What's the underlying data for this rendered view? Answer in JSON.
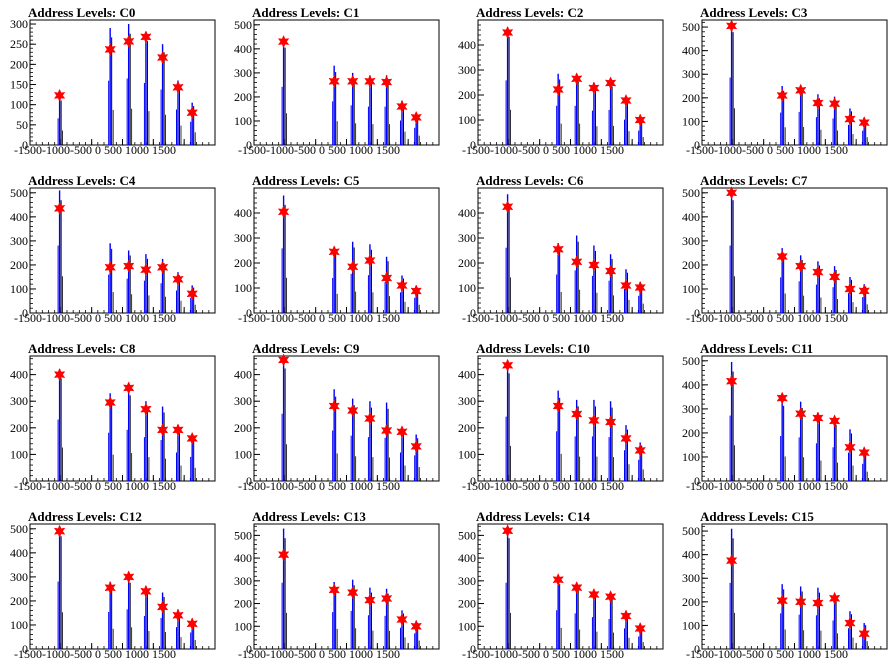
{
  "colors": {
    "histogram": "#0000ff",
    "outline": "#000000",
    "marker": "#ff0000",
    "background": "#ffffff"
  },
  "marker_icon": "red-star-marker",
  "x_ticks": [
    -1500,
    -1000,
    -500,
    0,
    500,
    1000,
    1500
  ],
  "x_tick_text": "-1500-1000-500  0  500 1000 1500",
  "chart_data": [
    {
      "type": "bar",
      "title": "Address Levels: C0",
      "xlim": [
        -1500,
        1500
      ],
      "ylim": [
        0,
        310
      ],
      "yticks": [
        0,
        50,
        100,
        150,
        200,
        250,
        300
      ],
      "peaks": [
        {
          "x": -1020,
          "count": 120
        },
        {
          "x": -200,
          "count": 290
        },
        {
          "x": 100,
          "count": 300
        },
        {
          "x": 380,
          "count": 280
        },
        {
          "x": 650,
          "count": 250
        },
        {
          "x": 900,
          "count": 160
        },
        {
          "x": 1130,
          "count": 105
        }
      ],
      "markers": [
        {
          "x": -1020,
          "y": 123
        },
        {
          "x": -200,
          "y": 237
        },
        {
          "x": 100,
          "y": 257
        },
        {
          "x": 380,
          "y": 268
        },
        {
          "x": 650,
          "y": 217
        },
        {
          "x": 900,
          "y": 143
        },
        {
          "x": 1130,
          "y": 80
        }
      ]
    },
    {
      "type": "bar",
      "title": "Address Levels: C1",
      "xlim": [
        -1500,
        1500
      ],
      "ylim": [
        0,
        520
      ],
      "yticks": [
        0,
        100,
        200,
        300,
        400,
        500
      ],
      "peaks": [
        {
          "x": -1020,
          "count": 440
        },
        {
          "x": -200,
          "count": 330
        },
        {
          "x": 100,
          "count": 300
        },
        {
          "x": 380,
          "count": 290
        },
        {
          "x": 650,
          "count": 290
        },
        {
          "x": 900,
          "count": 185
        },
        {
          "x": 1130,
          "count": 130
        }
      ],
      "markers": [
        {
          "x": -1020,
          "y": 430
        },
        {
          "x": -200,
          "y": 265
        },
        {
          "x": 100,
          "y": 265
        },
        {
          "x": 380,
          "y": 265
        },
        {
          "x": 650,
          "y": 262
        },
        {
          "x": 900,
          "y": 160
        },
        {
          "x": 1130,
          "y": 115
        }
      ]
    },
    {
      "type": "bar",
      "title": "Address Levels: C2",
      "xlim": [
        -1500,
        1500
      ],
      "ylim": [
        0,
        500
      ],
      "yticks": [
        0,
        100,
        200,
        300,
        400
      ],
      "peaks": [
        {
          "x": -1020,
          "count": 470
        },
        {
          "x": -200,
          "count": 285
        },
        {
          "x": 100,
          "count": 285
        },
        {
          "x": 380,
          "count": 250
        },
        {
          "x": 650,
          "count": 255
        },
        {
          "x": 900,
          "count": 185
        },
        {
          "x": 1130,
          "count": 105
        }
      ],
      "markers": [
        {
          "x": -1020,
          "y": 450
        },
        {
          "x": -200,
          "y": 222
        },
        {
          "x": 100,
          "y": 265
        },
        {
          "x": 380,
          "y": 228
        },
        {
          "x": 650,
          "y": 248
        },
        {
          "x": 900,
          "y": 178
        },
        {
          "x": 1130,
          "y": 100
        }
      ]
    },
    {
      "type": "bar",
      "title": "Address Levels: C3",
      "xlim": [
        -1500,
        1500
      ],
      "ylim": [
        0,
        530
      ],
      "yticks": [
        0,
        100,
        200,
        300,
        400,
        500
      ],
      "peaks": [
        {
          "x": -1020,
          "count": 520
        },
        {
          "x": -200,
          "count": 250
        },
        {
          "x": 100,
          "count": 255
        },
        {
          "x": 380,
          "count": 215
        },
        {
          "x": 650,
          "count": 205
        },
        {
          "x": 900,
          "count": 155
        },
        {
          "x": 1130,
          "count": 110
        }
      ],
      "markers": [
        {
          "x": -1020,
          "y": 505
        },
        {
          "x": -200,
          "y": 210
        },
        {
          "x": 100,
          "y": 232
        },
        {
          "x": 380,
          "y": 178
        },
        {
          "x": 650,
          "y": 175
        },
        {
          "x": 900,
          "y": 110
        },
        {
          "x": 1130,
          "y": 95
        }
      ]
    },
    {
      "type": "bar",
      "title": "Address Levels: C4",
      "xlim": [
        -1500,
        1500
      ],
      "ylim": [
        0,
        520
      ],
      "yticks": [
        0,
        100,
        200,
        300,
        400,
        500
      ],
      "peaks": [
        {
          "x": -1020,
          "count": 510
        },
        {
          "x": -200,
          "count": 290
        },
        {
          "x": 100,
          "count": 260
        },
        {
          "x": 380,
          "count": 245
        },
        {
          "x": 650,
          "count": 225
        },
        {
          "x": 900,
          "count": 170
        },
        {
          "x": 1130,
          "count": 115
        }
      ],
      "markers": [
        {
          "x": -1020,
          "y": 435
        },
        {
          "x": -200,
          "y": 190
        },
        {
          "x": 100,
          "y": 195
        },
        {
          "x": 380,
          "y": 180
        },
        {
          "x": 650,
          "y": 190
        },
        {
          "x": 900,
          "y": 140
        },
        {
          "x": 1130,
          "y": 80
        }
      ]
    },
    {
      "type": "bar",
      "title": "Address Levels: C5",
      "xlim": [
        -1500,
        1500
      ],
      "ylim": [
        0,
        500
      ],
      "yticks": [
        0,
        100,
        200,
        300,
        400
      ],
      "peaks": [
        {
          "x": -1020,
          "count": 470
        },
        {
          "x": -200,
          "count": 255
        },
        {
          "x": 100,
          "count": 285
        },
        {
          "x": 380,
          "count": 275
        },
        {
          "x": 650,
          "count": 225
        },
        {
          "x": 900,
          "count": 150
        },
        {
          "x": 1130,
          "count": 110
        }
      ],
      "markers": [
        {
          "x": -1020,
          "y": 405
        },
        {
          "x": -200,
          "y": 245
        },
        {
          "x": 100,
          "y": 185
        },
        {
          "x": 380,
          "y": 210
        },
        {
          "x": 650,
          "y": 140
        },
        {
          "x": 900,
          "y": 110
        },
        {
          "x": 1130,
          "y": 88
        }
      ]
    },
    {
      "type": "bar",
      "title": "Address Levels: C6",
      "xlim": [
        -1500,
        1500
      ],
      "ylim": [
        0,
        500
      ],
      "yticks": [
        0,
        100,
        200,
        300,
        400
      ],
      "peaks": [
        {
          "x": -1020,
          "count": 475
        },
        {
          "x": -200,
          "count": 280
        },
        {
          "x": 100,
          "count": 310
        },
        {
          "x": 380,
          "count": 270
        },
        {
          "x": 650,
          "count": 235
        },
        {
          "x": 900,
          "count": 175
        },
        {
          "x": 1130,
          "count": 125
        }
      ],
      "markers": [
        {
          "x": -1020,
          "y": 425
        },
        {
          "x": -200,
          "y": 255
        },
        {
          "x": 100,
          "y": 205
        },
        {
          "x": 380,
          "y": 192
        },
        {
          "x": 650,
          "y": 168
        },
        {
          "x": 900,
          "y": 110
        },
        {
          "x": 1130,
          "y": 102
        }
      ]
    },
    {
      "type": "bar",
      "title": "Address Levels: C7",
      "xlim": [
        -1500,
        1500
      ],
      "ylim": [
        0,
        520
      ],
      "yticks": [
        0,
        100,
        200,
        300,
        400,
        500
      ],
      "peaks": [
        {
          "x": -1020,
          "count": 510
        },
        {
          "x": -200,
          "count": 270
        },
        {
          "x": 100,
          "count": 240
        },
        {
          "x": 380,
          "count": 215
        },
        {
          "x": 650,
          "count": 195
        },
        {
          "x": 900,
          "count": 150
        },
        {
          "x": 1130,
          "count": 120
        }
      ],
      "markers": [
        {
          "x": -1020,
          "y": 500
        },
        {
          "x": -200,
          "y": 235
        },
        {
          "x": 100,
          "y": 195
        },
        {
          "x": 380,
          "y": 170
        },
        {
          "x": 650,
          "y": 150
        },
        {
          "x": 900,
          "y": 100
        },
        {
          "x": 1130,
          "y": 92
        }
      ]
    },
    {
      "type": "bar",
      "title": "Address Levels: C8",
      "xlim": [
        -1500,
        1500
      ],
      "ylim": [
        0,
        470
      ],
      "yticks": [
        0,
        100,
        200,
        300,
        400
      ],
      "peaks": [
        {
          "x": -1020,
          "count": 420
        },
        {
          "x": -200,
          "count": 330
        },
        {
          "x": 100,
          "count": 350
        },
        {
          "x": 380,
          "count": 300
        },
        {
          "x": 650,
          "count": 280
        },
        {
          "x": 900,
          "count": 195
        },
        {
          "x": 1130,
          "count": 165
        }
      ],
      "markers": [
        {
          "x": -1020,
          "y": 400
        },
        {
          "x": -200,
          "y": 295
        },
        {
          "x": 100,
          "y": 350
        },
        {
          "x": 380,
          "y": 270
        },
        {
          "x": 650,
          "y": 192
        },
        {
          "x": 900,
          "y": 192
        },
        {
          "x": 1130,
          "y": 160
        }
      ]
    },
    {
      "type": "bar",
      "title": "Address Levels: C9",
      "xlim": [
        -1500,
        1500
      ],
      "ylim": [
        0,
        470
      ],
      "yticks": [
        0,
        100,
        200,
        300,
        400
      ],
      "peaks": [
        {
          "x": -1020,
          "count": 460
        },
        {
          "x": -200,
          "count": 345
        },
        {
          "x": 100,
          "count": 310
        },
        {
          "x": 380,
          "count": 300
        },
        {
          "x": 650,
          "count": 295
        },
        {
          "x": 900,
          "count": 195
        },
        {
          "x": 1130,
          "count": 175
        }
      ],
      "markers": [
        {
          "x": -1020,
          "y": 455
        },
        {
          "x": -200,
          "y": 282
        },
        {
          "x": 100,
          "y": 265
        },
        {
          "x": 380,
          "y": 235
        },
        {
          "x": 650,
          "y": 190
        },
        {
          "x": 900,
          "y": 185
        },
        {
          "x": 1130,
          "y": 130
        }
      ]
    },
    {
      "type": "bar",
      "title": "Address Levels: C10",
      "xlim": [
        -1500,
        1500
      ],
      "ylim": [
        0,
        470
      ],
      "yticks": [
        0,
        100,
        200,
        300,
        400
      ],
      "peaks": [
        {
          "x": -1020,
          "count": 440
        },
        {
          "x": -200,
          "count": 340
        },
        {
          "x": 100,
          "count": 305
        },
        {
          "x": 380,
          "count": 305
        },
        {
          "x": 650,
          "count": 300
        },
        {
          "x": 900,
          "count": 210
        },
        {
          "x": 1130,
          "count": 145
        }
      ],
      "markers": [
        {
          "x": -1020,
          "y": 435
        },
        {
          "x": -200,
          "y": 282
        },
        {
          "x": 100,
          "y": 252
        },
        {
          "x": 380,
          "y": 228
        },
        {
          "x": 650,
          "y": 222
        },
        {
          "x": 900,
          "y": 160
        },
        {
          "x": 1130,
          "y": 115
        }
      ]
    },
    {
      "type": "bar",
      "title": "Address Levels: C11",
      "xlim": [
        -1500,
        1500
      ],
      "ylim": [
        0,
        520
      ],
      "yticks": [
        0,
        100,
        200,
        300,
        400,
        500
      ],
      "peaks": [
        {
          "x": -1020,
          "count": 495
        },
        {
          "x": -200,
          "count": 340
        },
        {
          "x": 100,
          "count": 330
        },
        {
          "x": 380,
          "count": 285
        },
        {
          "x": 650,
          "count": 255
        },
        {
          "x": 900,
          "count": 215
        },
        {
          "x": 1130,
          "count": 130
        }
      ],
      "markers": [
        {
          "x": -1020,
          "y": 415
        },
        {
          "x": -200,
          "y": 345
        },
        {
          "x": 100,
          "y": 280
        },
        {
          "x": 380,
          "y": 262
        },
        {
          "x": 650,
          "y": 250
        },
        {
          "x": 900,
          "y": 140
        },
        {
          "x": 1130,
          "y": 118
        }
      ]
    },
    {
      "type": "bar",
      "title": "Address Levels: C12",
      "xlim": [
        -1500,
        1500
      ],
      "ylim": [
        0,
        520
      ],
      "yticks": [
        0,
        100,
        200,
        300,
        400,
        500
      ],
      "peaks": [
        {
          "x": -1020,
          "count": 510
        },
        {
          "x": -200,
          "count": 280
        },
        {
          "x": 100,
          "count": 300
        },
        {
          "x": 380,
          "count": 250
        },
        {
          "x": 650,
          "count": 235
        },
        {
          "x": 900,
          "count": 165
        },
        {
          "x": 1130,
          "count": 125
        }
      ],
      "markers": [
        {
          "x": -1020,
          "y": 490
        },
        {
          "x": -200,
          "y": 255
        },
        {
          "x": 100,
          "y": 300
        },
        {
          "x": 380,
          "y": 240
        },
        {
          "x": 650,
          "y": 175
        },
        {
          "x": 900,
          "y": 140
        },
        {
          "x": 1130,
          "y": 105
        }
      ]
    },
    {
      "type": "bar",
      "title": "Address Levels: C13",
      "xlim": [
        -1500,
        1500
      ],
      "ylim": [
        0,
        550
      ],
      "yticks": [
        0,
        100,
        200,
        300,
        400,
        500
      ],
      "peaks": [
        {
          "x": -1020,
          "count": 530
        },
        {
          "x": -200,
          "count": 295
        },
        {
          "x": 100,
          "count": 305
        },
        {
          "x": 380,
          "count": 270
        },
        {
          "x": 650,
          "count": 265
        },
        {
          "x": 900,
          "count": 170
        },
        {
          "x": 1130,
          "count": 125
        }
      ],
      "markers": [
        {
          "x": -1020,
          "y": 415
        },
        {
          "x": -200,
          "y": 260
        },
        {
          "x": 100,
          "y": 248
        },
        {
          "x": 380,
          "y": 215
        },
        {
          "x": 650,
          "y": 222
        },
        {
          "x": 900,
          "y": 130
        },
        {
          "x": 1130,
          "y": 100
        }
      ]
    },
    {
      "type": "bar",
      "title": "Address Levels: C14",
      "xlim": [
        -1500,
        1500
      ],
      "ylim": [
        0,
        550
      ],
      "yticks": [
        0,
        100,
        200,
        300,
        400,
        500
      ],
      "peaks": [
        {
          "x": -1020,
          "count": 530
        },
        {
          "x": -200,
          "count": 310
        },
        {
          "x": 100,
          "count": 285
        },
        {
          "x": 380,
          "count": 255
        },
        {
          "x": 650,
          "count": 240
        },
        {
          "x": 900,
          "count": 165
        },
        {
          "x": 1130,
          "count": 100
        }
      ],
      "markers": [
        {
          "x": -1020,
          "y": 520
        },
        {
          "x": -200,
          "y": 305
        },
        {
          "x": 100,
          "y": 270
        },
        {
          "x": 380,
          "y": 240
        },
        {
          "x": 650,
          "y": 230
        },
        {
          "x": 900,
          "y": 145
        },
        {
          "x": 1130,
          "y": 90
        }
      ]
    },
    {
      "type": "bar",
      "title": "Address Levels: C15",
      "xlim": [
        -1500,
        1500
      ],
      "ylim": [
        0,
        530
      ],
      "yticks": [
        0,
        100,
        200,
        300,
        400,
        500
      ],
      "peaks": [
        {
          "x": -1020,
          "count": 510
        },
        {
          "x": -200,
          "count": 275
        },
        {
          "x": 100,
          "count": 265
        },
        {
          "x": 380,
          "count": 260
        },
        {
          "x": 650,
          "count": 220
        },
        {
          "x": 900,
          "count": 160
        },
        {
          "x": 1130,
          "count": 110
        }
      ],
      "markers": [
        {
          "x": -1020,
          "y": 375
        },
        {
          "x": -200,
          "y": 205
        },
        {
          "x": 100,
          "y": 200
        },
        {
          "x": 380,
          "y": 195
        },
        {
          "x": 650,
          "y": 215
        },
        {
          "x": 900,
          "y": 110
        },
        {
          "x": 1130,
          "y": 65
        }
      ]
    }
  ]
}
